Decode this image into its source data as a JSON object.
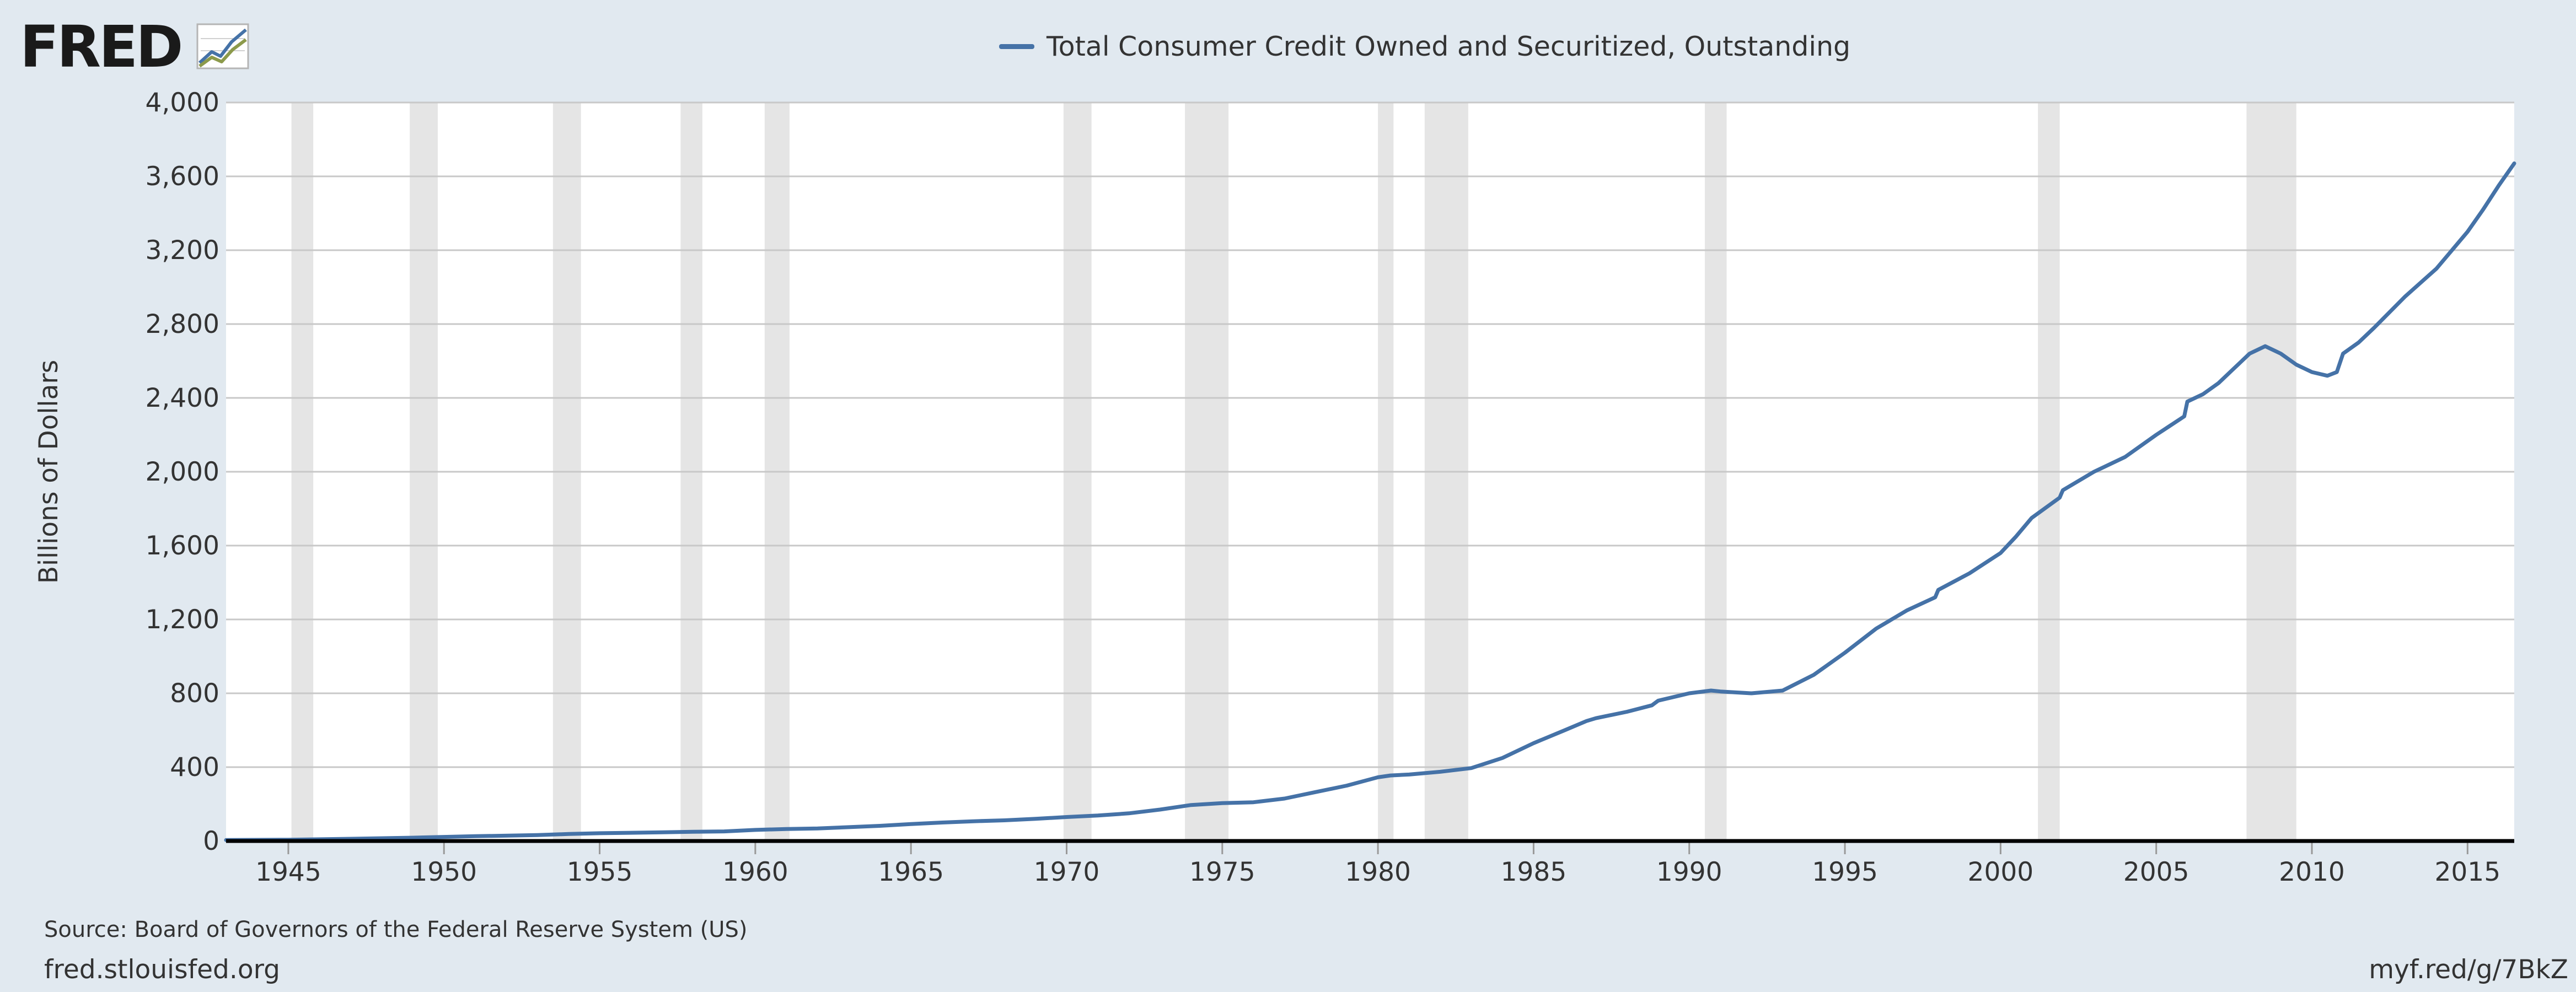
{
  "brand": {
    "logo_text": "FRED",
    "logo_icon": "fred-line-graph-icon"
  },
  "colors": {
    "background": "#e1e9f0",
    "plot_background": "#ffffff",
    "series": "#4572a7",
    "recession": "#e5e5e5",
    "grid": "#c8c8c8",
    "axis": "#000000",
    "text": "#333333"
  },
  "footer": {
    "source": "Source: Board of Governors of the Federal Reserve System (US)",
    "site": "fred.stlouisfed.org",
    "shortlink": "myf.red/g/7BkZ"
  },
  "chart_data": {
    "type": "line",
    "title": "",
    "ylabel": "Billions of Dollars",
    "xlabel": "",
    "xlim": [
      1943.0,
      2016.5
    ],
    "ylim": [
      0,
      4000
    ],
    "x_ticks": [
      1945,
      1950,
      1955,
      1960,
      1965,
      1970,
      1975,
      1980,
      1985,
      1990,
      1995,
      2000,
      2005,
      2010,
      2015
    ],
    "y_ticks": [
      0,
      400,
      800,
      1200,
      1600,
      2000,
      2400,
      2800,
      3200,
      3600,
      4000
    ],
    "y_tick_labels": [
      "0",
      "400",
      "800",
      "1,200",
      "1,600",
      "2,000",
      "2,400",
      "2,800",
      "3,200",
      "3,600",
      "4,000"
    ],
    "grid": true,
    "legend": "top-center",
    "recessions": [
      [
        1945.1,
        1945.8
      ],
      [
        1948.9,
        1949.8
      ],
      [
        1953.5,
        1954.4
      ],
      [
        1957.6,
        1958.3
      ],
      [
        1960.3,
        1961.1
      ],
      [
        1969.9,
        1970.8
      ],
      [
        1973.8,
        1975.2
      ],
      [
        1980.0,
        1980.5
      ],
      [
        1981.5,
        1982.9
      ],
      [
        1990.5,
        1991.2
      ],
      [
        2001.2,
        2001.9
      ],
      [
        2007.9,
        2009.5
      ]
    ],
    "series": [
      {
        "name": "Total Consumer Credit Owned and Securitized, Outstanding",
        "x": [
          1943.0,
          1945.0,
          1947.0,
          1949.0,
          1950.0,
          1951.0,
          1953.0,
          1954.0,
          1955.0,
          1957.0,
          1958.0,
          1959.0,
          1960.0,
          1961.0,
          1962.0,
          1963.0,
          1964.0,
          1965.0,
          1966.0,
          1967.0,
          1968.0,
          1969.0,
          1970.0,
          1971.0,
          1972.0,
          1973.0,
          1974.0,
          1975.0,
          1976.0,
          1977.0,
          1978.0,
          1979.0,
          1980.0,
          1980.4,
          1981.0,
          1982.0,
          1983.0,
          1984.0,
          1985.0,
          1986.0,
          1986.7,
          1987.0,
          1988.0,
          1988.8,
          1989.0,
          1990.0,
          1990.7,
          1991.0,
          1992.0,
          1993.0,
          1994.0,
          1995.0,
          1996.0,
          1997.0,
          1997.9,
          1998.0,
          1999.0,
          2000.0,
          2000.5,
          2001.0,
          2001.9,
          2002.0,
          2003.0,
          2004.0,
          2005.0,
          2005.9,
          2006.0,
          2006.5,
          2007.0,
          2007.5,
          2008.0,
          2008.5,
          2009.0,
          2009.5,
          2010.0,
          2010.5,
          2010.8,
          2011.0,
          2011.5,
          2012.0,
          2013.0,
          2014.0,
          2015.0,
          2015.5,
          2016.0,
          2016.5
        ],
        "y": [
          5,
          7,
          12,
          18,
          22,
          26,
          32,
          38,
          42,
          47,
          50,
          52,
          60,
          65,
          68,
          75,
          82,
          92,
          100,
          107,
          112,
          120,
          130,
          138,
          150,
          170,
          195,
          205,
          210,
          230,
          265,
          300,
          345,
          355,
          360,
          375,
          395,
          450,
          530,
          600,
          650,
          665,
          700,
          735,
          760,
          800,
          815,
          810,
          800,
          815,
          900,
          1020,
          1150,
          1250,
          1320,
          1360,
          1450,
          1560,
          1650,
          1750,
          1860,
          1900,
          2000,
          2080,
          2200,
          2300,
          2380,
          2420,
          2480,
          2560,
          2640,
          2680,
          2640,
          2580,
          2540,
          2520,
          2540,
          2640,
          2700,
          2780,
          2950,
          3100,
          3300,
          3420,
          3550,
          3670
        ]
      }
    ]
  }
}
